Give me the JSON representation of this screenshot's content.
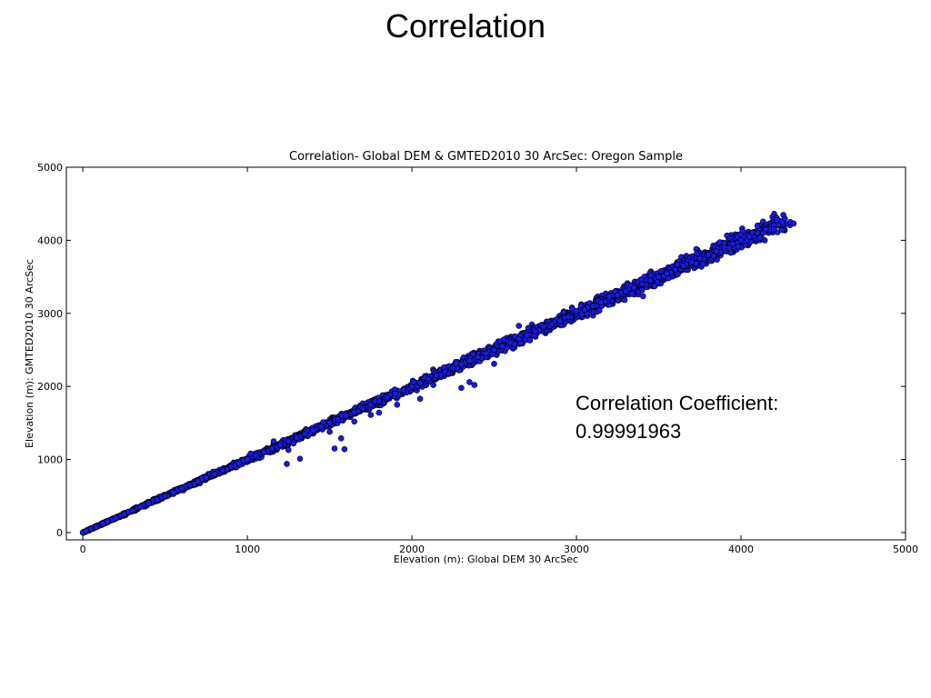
{
  "slide": {
    "title": "Correlation"
  },
  "annotation": {
    "line1": "Correlation Coefficient:",
    "line2": "0.99991963"
  },
  "colors": {
    "marker_fill": "#1a1ae6",
    "marker_edge": "#000000",
    "axes": "#000000"
  },
  "chart_data": {
    "type": "scatter",
    "title": "Correlation- Global DEM & GMTED2010 30 ArcSec: Oregon Sample",
    "xlabel": "Elevation (m): Global DEM 30 ArcSec",
    "ylabel": "Elevation (m): GMTED2010 30 ArcSec",
    "xlim": [
      -100,
      5000
    ],
    "ylim": [
      -100,
      5000
    ],
    "xticks": [
      0,
      1000,
      2000,
      3000,
      4000,
      5000
    ],
    "yticks": [
      0,
      1000,
      2000,
      3000,
      4000,
      5000
    ],
    "xtick_labels": [
      "0",
      "1000",
      "2000",
      "3000",
      "4000",
      "5000"
    ],
    "ytick_labels": [
      "0",
      "1000",
      "2000",
      "3000",
      "4000",
      "5000"
    ],
    "grid": false,
    "legend": "none",
    "correlation_coefficient": 0.99991963,
    "series": [
      {
        "marker": "circle",
        "x": [
          0,
          20,
          50,
          80,
          120,
          150,
          200,
          250,
          300,
          350,
          400,
          450,
          500,
          550,
          600,
          650,
          700,
          750,
          800,
          850,
          900,
          950,
          1000,
          1050,
          1100,
          1150,
          1200,
          1250,
          1300,
          1350,
          1400,
          1450,
          1500,
          1550,
          1600,
          1650,
          1700,
          1750,
          1800,
          1850,
          1900,
          1950,
          2000,
          2050,
          2100,
          2150,
          2200,
          2250,
          2300,
          2350,
          2400,
          2450,
          2500,
          2550,
          2600,
          2650,
          2700,
          2750,
          2800,
          2850,
          2900,
          2950,
          3000,
          3050,
          3100,
          3150,
          3200,
          3250,
          3300,
          3350,
          3400,
          3450,
          3500,
          3550,
          3600,
          3650,
          3700,
          3750,
          3800,
          3850,
          3900,
          3950,
          4000,
          4050,
          4100,
          4150,
          4200,
          4250,
          4300,
          4320,
          1020,
          1160,
          1240,
          1250,
          1500,
          1530,
          1570,
          1590,
          1650,
          1750,
          1800,
          1910,
          2010,
          2050,
          2130,
          2300,
          2350,
          2380,
          2500,
          2650,
          2800,
          3000,
          3200,
          4100,
          4200,
          4250,
          1280,
          1320
        ],
        "y": [
          0,
          20,
          50,
          80,
          120,
          150,
          200,
          250,
          300,
          350,
          400,
          450,
          500,
          550,
          600,
          650,
          700,
          750,
          800,
          850,
          900,
          950,
          1000,
          1050,
          1100,
          1150,
          1200,
          1250,
          1300,
          1350,
          1400,
          1450,
          1500,
          1550,
          1600,
          1650,
          1700,
          1750,
          1800,
          1850,
          1900,
          1950,
          2000,
          2050,
          2100,
          2150,
          2200,
          2250,
          2300,
          2350,
          2400,
          2450,
          2500,
          2550,
          2600,
          2650,
          2700,
          2750,
          2800,
          2850,
          2900,
          2950,
          3000,
          3050,
          3100,
          3150,
          3200,
          3250,
          3300,
          3350,
          3400,
          3450,
          3500,
          3550,
          3600,
          3650,
          3700,
          3750,
          3800,
          3850,
          3900,
          3950,
          4000,
          4050,
          4100,
          4150,
          4200,
          4250,
          4250,
          4230,
          1080,
          1250,
          940,
          1130,
          1380,
          1150,
          1290,
          1140,
          1520,
          1610,
          1640,
          1750,
          2060,
          1830,
          2020,
          1980,
          2060,
          2020,
          2310,
          2830,
          2820,
          3030,
          3230,
          4200,
          4150,
          4140,
          1220,
          1010
        ]
      }
    ]
  }
}
